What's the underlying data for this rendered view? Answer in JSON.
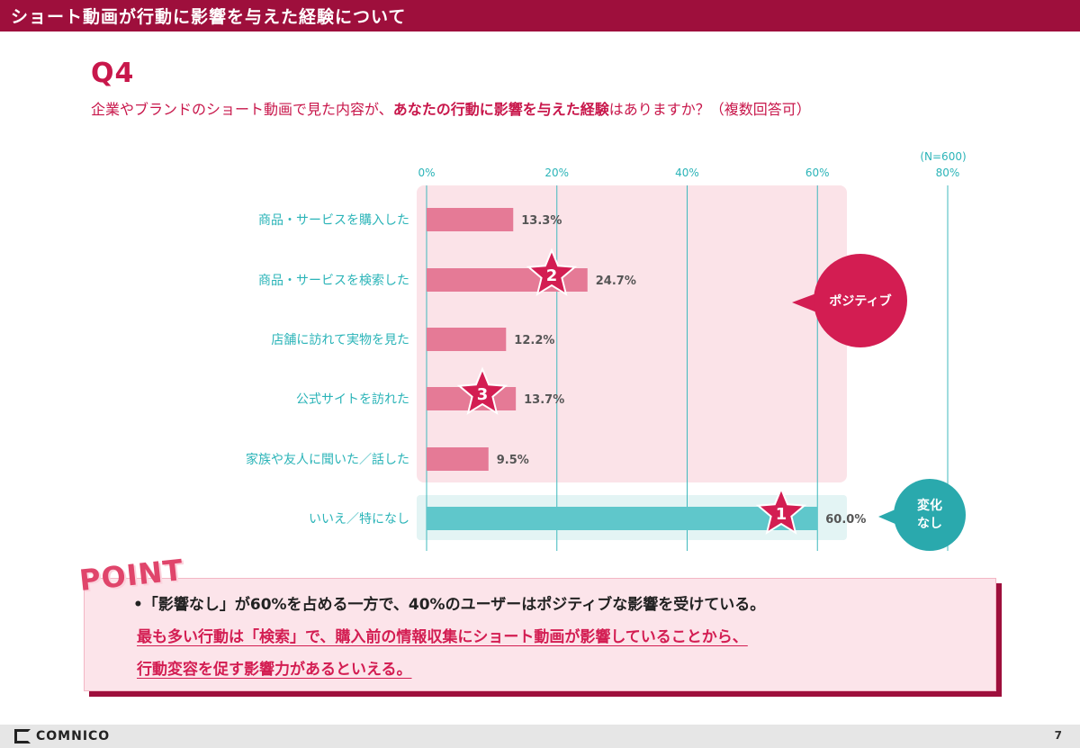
{
  "header": {
    "title": "ショート動画が行動に影響を与えた経験について"
  },
  "question": {
    "number": "Q4",
    "text_before": "企業やブランドのショート動画で見た内容が、",
    "text_highlight": "あなたの行動に影響を与えた経験",
    "text_after": "はありますか？（複数回答可）"
  },
  "chart_data": {
    "type": "bar",
    "orientation": "horizontal",
    "sample_note": "(N=600)",
    "x_ticks": [
      "0%",
      "20%",
      "40%",
      "60%",
      "80%"
    ],
    "xlim": [
      0,
      80
    ],
    "categories": [
      "商品・サービスを購入した",
      "商品・サービスを検索した",
      "店舗に訪れて実物を見た",
      "公式サイトを訪れた",
      "家族や友人に聞いた／話した",
      "いいえ／特になし"
    ],
    "values": [
      13.3,
      24.7,
      12.2,
      13.7,
      9.5,
      60.0
    ],
    "value_labels": [
      "13.3%",
      "24.7%",
      "12.2%",
      "13.7%",
      "9.5%",
      "60.0%"
    ],
    "bar_colors": [
      "#e57a96",
      "#e57a96",
      "#e57a96",
      "#e57a96",
      "#e57a96",
      "#5fc7cb"
    ],
    "rank_badges": [
      {
        "rank": "2",
        "category_index": 1
      },
      {
        "rank": "3",
        "category_index": 3
      },
      {
        "rank": "1",
        "category_index": 5
      }
    ],
    "group_labels": {
      "positive": "ポジティブ",
      "no_change_line1": "変化",
      "no_change_line2": "なし"
    }
  },
  "point": {
    "heading": "POINT",
    "line1": "•「影響なし」が60%を占める一方で、40%のユーザーはポジティブな影響を受けている。",
    "line2": "最も多い行動は「検索」で、購入前の情報収集にショート動画が影響していることから、",
    "line3": "行動変容を促す影響力があるといえる。"
  },
  "footer": {
    "brand": "COMNICO",
    "page": "7"
  },
  "colors": {
    "brand": "#9e0f3c",
    "accent": "#c8174b",
    "pink_bar": "#e57a96",
    "teal": "#2bb4b8",
    "teal_bar": "#5fc7cb"
  }
}
